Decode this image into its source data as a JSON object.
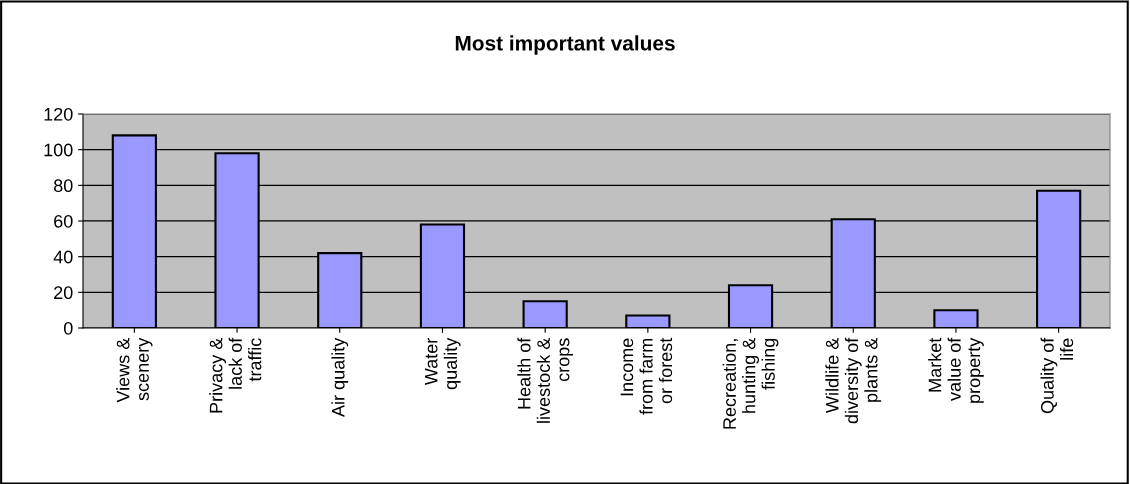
{
  "chart_data": {
    "type": "bar",
    "title": "Most important values",
    "categories": [
      "Views &\nscenery",
      "Privacy &\nlack of\ntraffic",
      "Air quality",
      "Water\nquality",
      "Health of\nlivestock &\ncrops",
      "Income\nfrom farm\nor forest",
      "Recreation,\nhunting &\nfishing",
      "Wildlife &\ndiversity of\nplants &",
      "Market\nvalue of\nproperty",
      "Quality of\nlife"
    ],
    "values": [
      108,
      98,
      42,
      58,
      15,
      7,
      24,
      61,
      10,
      77
    ],
    "color": "#9999ff",
    "ylim": [
      0,
      120
    ],
    "yticks": [
      0,
      20,
      40,
      60,
      80,
      100,
      120
    ],
    "grid": "y",
    "legend": false
  }
}
